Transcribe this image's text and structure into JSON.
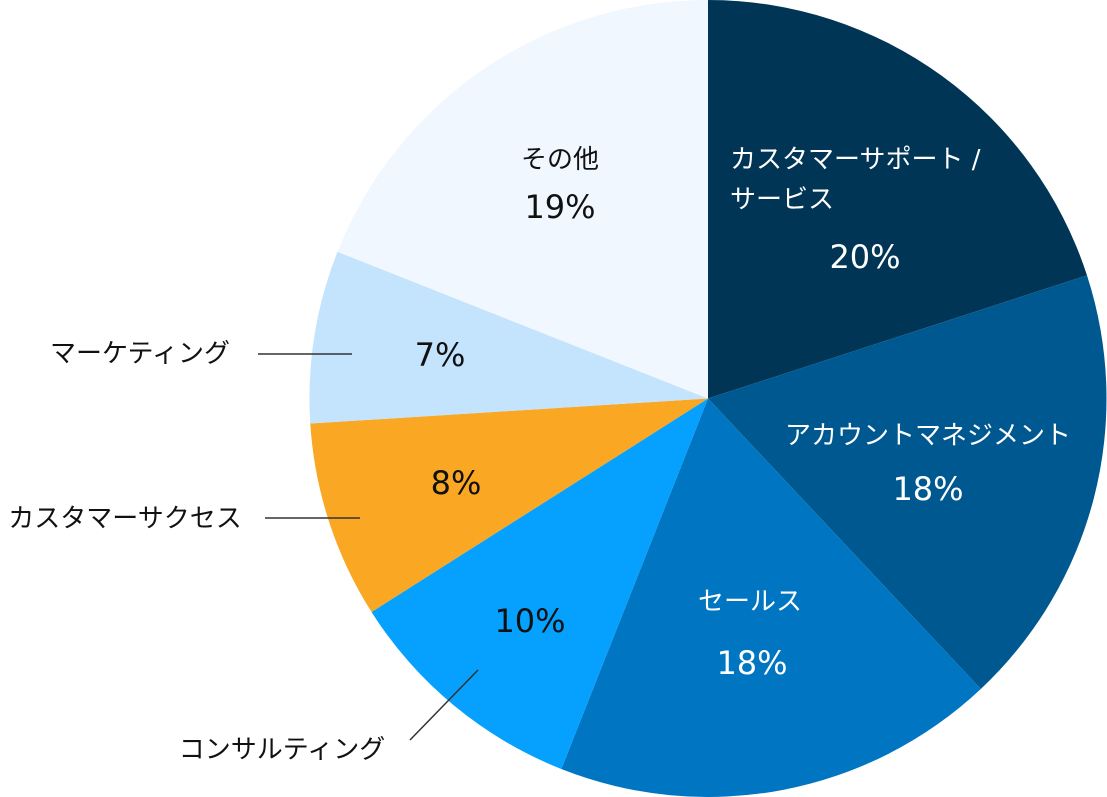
{
  "chart_data": {
    "type": "pie",
    "start": "top",
    "direction": "clockwise",
    "slices": [
      {
        "label": "カスタマーサポート / サービス",
        "label_lines": [
          "カスタマーサポート /",
          "サービス"
        ],
        "value": 20,
        "value_label": "20%",
        "color": "#003556",
        "text_color": "#ffffff",
        "label_placement": "inside"
      },
      {
        "label": "アカウントマネジメント",
        "label_lines": [
          "アカウントマネジメント"
        ],
        "value": 18,
        "value_label": "18%",
        "color": "#005891",
        "text_color": "#ffffff",
        "label_placement": "inside"
      },
      {
        "label": "セールス",
        "label_lines": [
          "セールス"
        ],
        "value": 18,
        "value_label": "18%",
        "color": "#0075C1",
        "text_color": "#ffffff",
        "label_placement": "inside"
      },
      {
        "label": "コンサルティング",
        "label_lines": [
          "コンサルティング"
        ],
        "value": 10,
        "value_label": "10%",
        "color": "#06A0FE",
        "text_color": "#111111",
        "label_placement": "outside"
      },
      {
        "label": "カスタマーサクセス",
        "label_lines": [
          "カスタマーサクセス"
        ],
        "value": 8,
        "value_label": "8%",
        "color": "#FAA723",
        "text_color": "#111111",
        "label_placement": "outside"
      },
      {
        "label": "マーケティング",
        "label_lines": [
          "マーケティング"
        ],
        "value": 7,
        "value_label": "7%",
        "color": "#C3E4FC",
        "text_color": "#111111",
        "label_placement": "outside"
      },
      {
        "label": "その他",
        "label_lines": [
          "その他"
        ],
        "value": 19,
        "value_label": "19%",
        "color": "#F0F7FE",
        "text_color": "#111111",
        "label_placement": "inside"
      }
    ]
  }
}
